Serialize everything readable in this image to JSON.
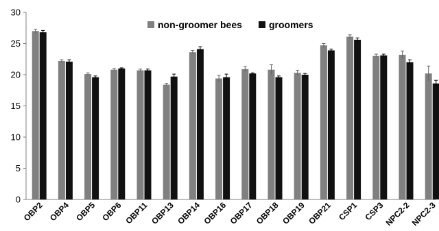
{
  "chart_data": {
    "type": "bar",
    "categories": [
      "OBP2",
      "OBP4",
      "OBP5",
      "OBP6",
      "OBP11",
      "OBP13",
      "OBP14",
      "OBP16",
      "OBP17",
      "OBP18",
      "OBP19",
      "OBP21",
      "CSP1",
      "CSP3",
      "NPC2-2",
      "NPC2-3"
    ],
    "series": [
      {
        "name": "non-groomer bees",
        "color": "#808080",
        "values": [
          27.0,
          22.2,
          20.1,
          20.8,
          20.7,
          18.4,
          23.6,
          19.4,
          20.9,
          20.8,
          20.3,
          24.7,
          26.1,
          23.0,
          23.2,
          20.2
        ],
        "errors": [
          0.3,
          0.2,
          0.2,
          0.2,
          0.2,
          0.2,
          0.3,
          0.5,
          0.4,
          0.8,
          0.4,
          0.3,
          0.3,
          0.3,
          0.6,
          1.2
        ]
      },
      {
        "name": "groomers",
        "color": "#111111",
        "values": [
          26.8,
          22.1,
          19.6,
          21.0,
          20.7,
          19.7,
          24.1,
          19.6,
          20.2,
          19.6,
          20.0,
          23.9,
          25.6,
          23.1,
          22.0,
          18.6
        ],
        "errors": [
          0.3,
          0.3,
          0.2,
          0.1,
          0.2,
          0.4,
          0.4,
          0.5,
          0.1,
          0.2,
          0.2,
          0.2,
          0.3,
          0.2,
          0.4,
          0.5
        ]
      }
    ],
    "yticks": [
      0,
      5,
      10,
      15,
      20,
      25,
      30
    ],
    "ylim": [
      0,
      30
    ],
    "grid": false,
    "legend_position": "top-center"
  }
}
